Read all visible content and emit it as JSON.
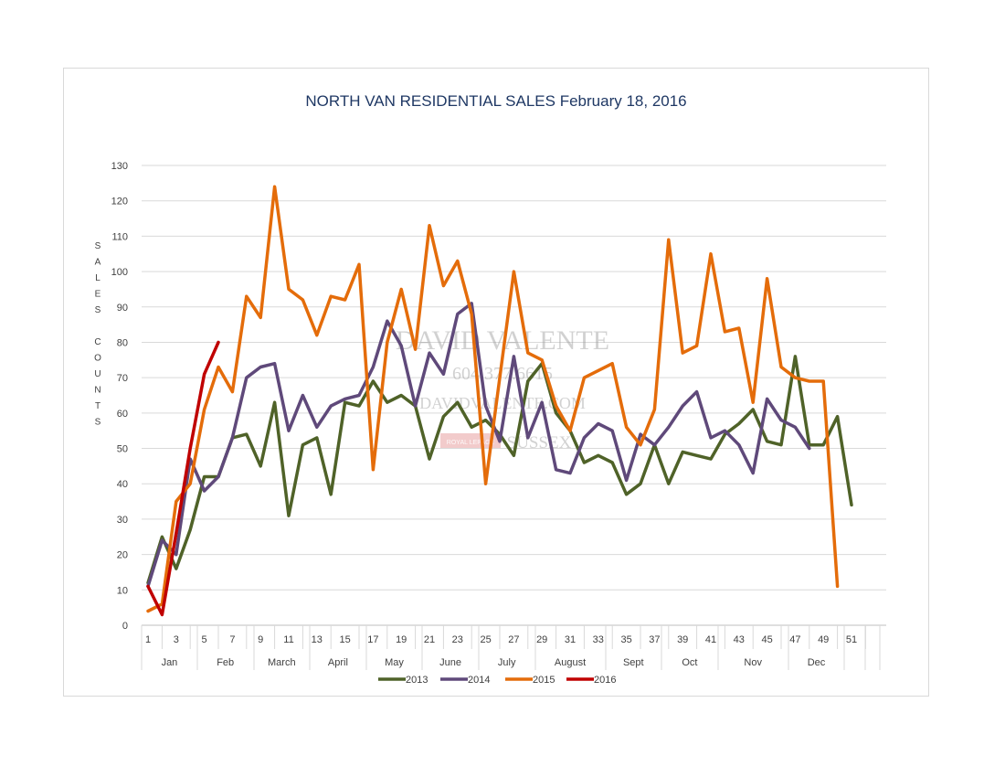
{
  "chart_data": {
    "type": "line",
    "title": "NORTH VAN RESIDENTIAL SALES February 18, 2016",
    "ylabel": "SALES COUNTS",
    "ylabel_parts": [
      "SALES",
      "COUNTS"
    ],
    "ylim": [
      0,
      130
    ],
    "ytick_step": 10,
    "xlim": [
      1,
      53
    ],
    "x_ticks": [
      1,
      3,
      5,
      7,
      9,
      11,
      13,
      15,
      17,
      19,
      21,
      23,
      25,
      27,
      29,
      31,
      33,
      35,
      37,
      39,
      41,
      43,
      45,
      47,
      49,
      51
    ],
    "months": [
      {
        "name": "Jan",
        "start": 1,
        "end": 4.5
      },
      {
        "name": "Feb",
        "start": 4.5,
        "end": 8.5
      },
      {
        "name": "March",
        "start": 8.5,
        "end": 12.5
      },
      {
        "name": "April",
        "start": 12.5,
        "end": 16.5
      },
      {
        "name": "May",
        "start": 16.5,
        "end": 20.5
      },
      {
        "name": "June",
        "start": 20.5,
        "end": 24.5
      },
      {
        "name": "July",
        "start": 24.5,
        "end": 28.5
      },
      {
        "name": "August",
        "start": 28.5,
        "end": 33.5
      },
      {
        "name": "Sept",
        "start": 33.5,
        "end": 37.5
      },
      {
        "name": "Oct",
        "start": 37.5,
        "end": 41.5
      },
      {
        "name": "Nov",
        "start": 41.5,
        "end": 46.5
      },
      {
        "name": "Dec",
        "start": 46.5,
        "end": 50.5
      }
    ],
    "series": [
      {
        "name": "2013",
        "color": "#4f6228",
        "start_week": 1,
        "values": [
          12,
          25,
          16,
          27,
          42,
          42,
          53,
          54,
          45,
          63,
          31,
          51,
          53,
          37,
          63,
          62,
          69,
          63,
          65,
          62,
          47,
          59,
          63,
          56,
          58,
          54,
          48,
          69,
          74,
          60,
          55,
          46,
          48,
          46,
          37,
          40,
          51,
          40,
          49,
          48,
          47,
          54,
          57,
          61,
          52,
          51,
          76,
          51,
          51,
          59,
          34
        ]
      },
      {
        "name": "2014",
        "color": "#5f497a",
        "start_week": 1,
        "values": [
          11,
          24,
          20,
          47,
          38,
          42,
          53,
          70,
          73,
          74,
          55,
          65,
          56,
          62,
          64,
          65,
          73,
          86,
          79,
          62,
          77,
          71,
          88,
          91,
          62,
          52,
          76,
          53,
          63,
          44,
          43,
          53,
          57,
          55,
          41,
          54,
          51,
          56,
          62,
          66,
          53,
          55,
          51,
          43,
          64,
          58,
          56,
          50
        ]
      },
      {
        "name": "2015",
        "color": "#e46c0a",
        "start_week": 1,
        "values": [
          4,
          6,
          35,
          40,
          61,
          73,
          66,
          93,
          87,
          124,
          95,
          92,
          82,
          93,
          92,
          102,
          44,
          80,
          95,
          78,
          113,
          96,
          103,
          88,
          40,
          70,
          100,
          77,
          75,
          62,
          55,
          70,
          72,
          74,
          56,
          51,
          61,
          109,
          77,
          79,
          105,
          83,
          84,
          63,
          98,
          73,
          70,
          69,
          69,
          11
        ]
      },
      {
        "name": "2016",
        "color": "#c00000",
        "start_week": 1,
        "values": [
          11,
          3,
          26,
          50,
          71,
          80
        ]
      }
    ],
    "legend": [
      "2013",
      "2014",
      "2015",
      "2016"
    ],
    "legend_position": "bottom",
    "grid": true,
    "watermark": {
      "line1": "DAVID VALENTE",
      "line2": "604.377.6615",
      "line3": "DAVIDVALENTE.COM",
      "line4": "SUSSEX",
      "logo_text": "ROYAL LEPAGE"
    }
  }
}
